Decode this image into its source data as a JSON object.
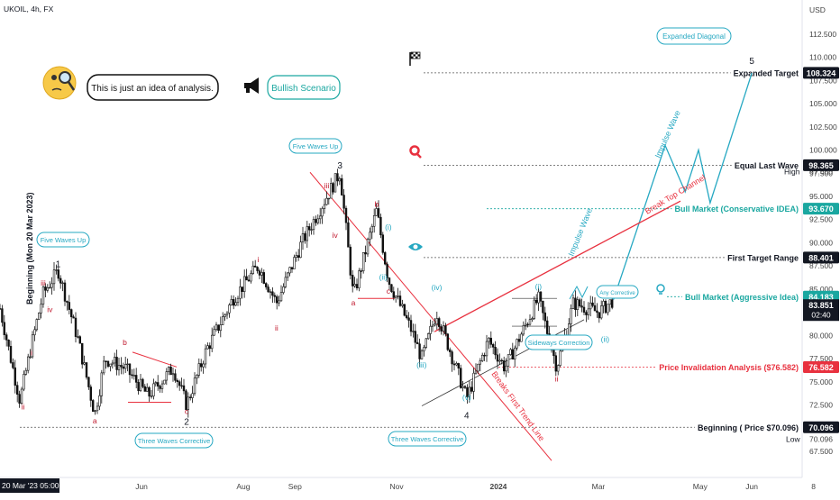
{
  "header": {
    "symbol": "UKOIL, 4h, FX"
  },
  "colors": {
    "candle": "#111111",
    "teal": "#26a8c2",
    "label_teal": "#1aa7a0",
    "red": "#e8313f",
    "dark_red": "#c0182d",
    "black_label": "#131722",
    "grid_dash": "#555555",
    "axis_text": "#444444"
  },
  "callouts": {
    "idea_text": "This is just an idea of analysis.",
    "scenario": "Bullish Scenario",
    "expanded_diagonal": "Expanded Diagonal",
    "sideways_correction": "Sideways Correction",
    "any_corrective": "Any Corrective"
  },
  "price_axis": {
    "currency": "USD",
    "ticks": [
      "112.500",
      "110.000",
      "107.500",
      "105.000",
      "102.500",
      "100.000",
      "97.500",
      "95.000",
      "92.500",
      "90.000",
      "87.500",
      "85.000",
      "82.500",
      "80.000",
      "77.500",
      "75.000",
      "72.500",
      "70.000",
      "67.500"
    ],
    "ranges": [
      "High",
      "Low"
    ],
    "high_value": "97.660",
    "low_value": "70.096",
    "current_time": "02:40"
  },
  "time_axis": {
    "start_label": "20 Mar '23 05:00",
    "labels": [
      "Jun",
      "Aug",
      "Sep",
      "Nov",
      "2024",
      "Mar",
      "May",
      "Jun",
      "8"
    ]
  },
  "vertical_label": "Beginning (Mon 20 Mar 2023)",
  "chart_data": {
    "type": "candlestick",
    "symbol": "UKOIL",
    "timeframe": "4h",
    "ylabel": "USD",
    "ylim": [
      66,
      114
    ],
    "x_axis": [
      "20 Mar '23",
      "Jun",
      "Aug",
      "Sep",
      "Nov",
      "2024",
      "Mar",
      "May",
      "Jun",
      "8"
    ],
    "price_path": [
      {
        "t": "2023-03-20",
        "price": 73.0
      },
      {
        "t": "2023-03-27",
        "price": 79.0
      },
      {
        "t": "2023-04-03",
        "price": 84.5
      },
      {
        "t": "2023-04-12",
        "price": 87.0
      },
      {
        "t": "2023-04-24",
        "price": 79.5
      },
      {
        "t": "2023-05-04",
        "price": 71.5
      },
      {
        "t": "2023-05-10",
        "price": 77.5
      },
      {
        "t": "2023-05-22",
        "price": 76.5
      },
      {
        "t": "2023-06-05",
        "price": 73.5
      },
      {
        "t": "2023-06-20",
        "price": 76.5
      },
      {
        "t": "2023-06-28",
        "price": 72.5
      },
      {
        "t": "2023-07-10",
        "price": 78.5
      },
      {
        "t": "2023-07-26",
        "price": 84.0
      },
      {
        "t": "2023-08-10",
        "price": 87.5
      },
      {
        "t": "2023-08-21",
        "price": 83.5
      },
      {
        "t": "2023-09-05",
        "price": 90.0
      },
      {
        "t": "2023-09-28",
        "price": 97.6
      },
      {
        "t": "2023-10-06",
        "price": 84.2
      },
      {
        "t": "2023-10-20",
        "price": 93.5
      },
      {
        "t": "2023-10-27",
        "price": 86.0
      },
      {
        "t": "2023-11-10",
        "price": 80.5
      },
      {
        "t": "2023-11-16",
        "price": 77.5
      },
      {
        "t": "2023-11-25",
        "price": 82.5
      },
      {
        "t": "2023-12-13",
        "price": 73.2
      },
      {
        "t": "2023-12-26",
        "price": 79.5
      },
      {
        "t": "2024-01-05",
        "price": 76.5
      },
      {
        "t": "2024-01-25",
        "price": 84.0
      },
      {
        "t": "2024-02-05",
        "price": 76.6
      },
      {
        "t": "2024-02-15",
        "price": 83.5
      },
      {
        "t": "2024-03-01",
        "price": 82.5
      },
      {
        "t": "2024-03-10",
        "price": 83.85
      }
    ],
    "projection": [
      {
        "t": "2024-04-10",
        "price": 100.5
      },
      {
        "t": "2024-04-22",
        "price": 95.5
      },
      {
        "t": "2024-04-30",
        "price": 100.0
      },
      {
        "t": "2024-05-07",
        "price": 94.3
      },
      {
        "t": "2024-06-01",
        "price": 108.3
      }
    ],
    "levels": [
      {
        "label": "Expanded Target",
        "value": "108.324",
        "color": "black"
      },
      {
        "label": "Equal Last Wave",
        "value": "98.365",
        "color": "black"
      },
      {
        "label": "Bull Market (Conservative IDEA)",
        "value": "93.670",
        "color": "teal"
      },
      {
        "label": "First Target Range",
        "value": "88.401",
        "color": "black"
      },
      {
        "label": "Bull Market (Aggressive Idea)",
        "value": "84.183",
        "color": "teal"
      },
      {
        "label": "Price Invalidation Analysis ($76.582)",
        "value": "76.582",
        "color": "red"
      },
      {
        "label": "Beginning ( Price $70.096)",
        "value": "70.096",
        "color": "black"
      }
    ],
    "last_price": "83.851",
    "wave_labels": [
      {
        "text": "1",
        "t": "2023-04-12",
        "price": 87.0
      },
      {
        "text": "2",
        "t": "2023-06-28",
        "price": 72.5
      },
      {
        "text": "3",
        "t": "2023-09-28",
        "price": 97.6
      },
      {
        "text": "4",
        "t": "2023-12-13",
        "price": 73.2
      },
      {
        "text": "5",
        "t": "2024-06-01",
        "price": 108.3
      },
      {
        "text": "a",
        "t": "2023-05-04",
        "price": 71.5
      },
      {
        "text": "b",
        "t": "2023-05-22",
        "price": 78.6
      },
      {
        "text": "c",
        "t": "2023-06-28",
        "price": 72.5
      },
      {
        "text": "a",
        "t": "2023-10-06",
        "price": 84.2
      },
      {
        "text": "b",
        "t": "2023-10-20",
        "price": 93.5
      },
      {
        "text": "c",
        "t": "2023-10-27",
        "price": 85.5
      },
      {
        "text": "i",
        "t": "2023-03-27",
        "price": 78.8
      },
      {
        "text": "ii",
        "t": "2023-03-22",
        "price": 73.0
      },
      {
        "text": "iii",
        "t": "2023-04-03",
        "price": 85.0
      },
      {
        "text": "iv",
        "t": "2023-04-07",
        "price": 83.5
      },
      {
        "text": "i",
        "t": "2023-08-10",
        "price": 87.5
      },
      {
        "text": "ii",
        "t": "2023-08-21",
        "price": 81.5
      },
      {
        "text": "iii",
        "t": "2023-09-20",
        "price": 95.5
      },
      {
        "text": "iv",
        "t": "2023-09-25",
        "price": 91.5
      },
      {
        "text": "(i)",
        "t": "2023-10-27",
        "price": 91.0
      },
      {
        "text": "(ii)",
        "t": "2023-10-24",
        "price": 87.0
      },
      {
        "text": "(iii)",
        "t": "2023-11-16",
        "price": 77.5
      },
      {
        "text": "(iv)",
        "t": "2023-11-25",
        "price": 84.5
      },
      {
        "text": "(v)",
        "t": "2023-12-13",
        "price": 74.0
      },
      {
        "text": "(i)",
        "t": "2024-01-25",
        "price": 84.6
      },
      {
        "text": "(ii)",
        "t": "2024-03-05",
        "price": 80.3
      },
      {
        "text": "ii",
        "t": "2024-02-05",
        "price": 76.0
      }
    ],
    "annotations": [
      "Five Waves Up",
      "Five Waves Up",
      "Three Waves Corrective",
      "Three Waves Corrective",
      "Impulse Wave",
      "Impulse Wave",
      "Break Top Channel",
      "Breaks First Trend Line",
      "Expanded Diagonal",
      "Sideways Correction",
      "Any Corrective"
    ]
  }
}
